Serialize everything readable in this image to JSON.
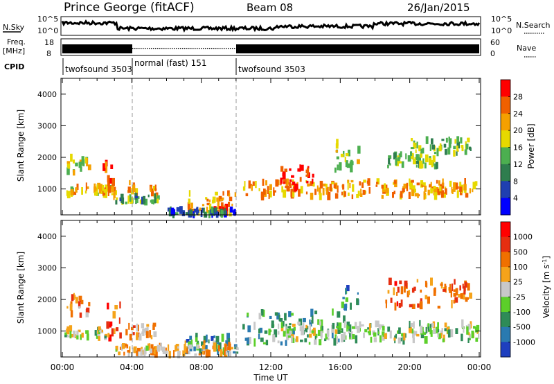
{
  "header": {
    "station": "Prince George (fitACF)",
    "beam": "Beam 08",
    "date": "26/Jan/2015"
  },
  "panels": {
    "nsky": {
      "left_label": "N.Sky",
      "left_ticks": [
        "10^5",
        "10^0"
      ],
      "right_ticks": [
        "10^5",
        "10^0"
      ],
      "right_label": "N.Search"
    },
    "freq": {
      "left_label_1": "Freq.",
      "left_label_2": "[MHz]",
      "left_ticks": [
        "18",
        "8"
      ],
      "right_ticks": [
        "60",
        "0"
      ],
      "right_label": "Nave"
    },
    "cpid": {
      "label": "CPID",
      "segments": [
        {
          "label": "twofsound 3503",
          "start_h": 0,
          "end_h": 4
        },
        {
          "label": "normal (fast) 151",
          "start_h": 4,
          "end_h": 10
        },
        {
          "label": "twofsound 3503",
          "start_h": 10,
          "end_h": 24
        }
      ]
    }
  },
  "colors": {
    "power": [
      "#0000ff",
      "#1f3fb0",
      "#2e7d4e",
      "#4caf50",
      "#e6d900",
      "#f5a000",
      "#f06000",
      "#ff0000"
    ],
    "velocity": [
      "#1e3fbf",
      "#2a7ab0",
      "#2e8b57",
      "#5ccf2a",
      "#c8c8c8",
      "#f5a31a",
      "#f07000",
      "#e62e10",
      "#ff0000"
    ],
    "accent_line": "#888888"
  },
  "chart_data": [
    {
      "type": "heatmap",
      "name": "power",
      "ylabel": "Slant Range [km]",
      "xlabel": "",
      "xlim": [
        0,
        24
      ],
      "ylim": [
        180,
        4500
      ],
      "y_ticks": [
        "4000",
        "3000",
        "2000",
        "1000"
      ],
      "colorbar": {
        "label": "Power [dB]",
        "ticks": [
          "28",
          "24",
          "20",
          "16",
          "12",
          "8",
          "4"
        ],
        "range": [
          0,
          32
        ]
      },
      "regions": [
        {
          "t0": 0.1,
          "t1": 3.2,
          "r0": 800,
          "r1": 1100,
          "level": 0.65
        },
        {
          "t0": 0.2,
          "t1": 1.5,
          "r0": 1500,
          "r1": 2100,
          "level": 0.55
        },
        {
          "t0": 2.3,
          "t1": 3.3,
          "r0": 700,
          "r1": 1900,
          "level": 0.75
        },
        {
          "t0": 3.6,
          "t1": 4.3,
          "r0": 900,
          "r1": 1200,
          "level": 0.7
        },
        {
          "t0": 4.9,
          "t1": 5.4,
          "r0": 800,
          "r1": 1050,
          "level": 0.65
        },
        {
          "t0": 7.2,
          "t1": 10.0,
          "r0": 250,
          "r1": 900,
          "level": 0.7
        },
        {
          "t0": 8.6,
          "t1": 9.4,
          "r0": 250,
          "r1": 500,
          "level": 0.95
        },
        {
          "t0": 10.4,
          "t1": 23.9,
          "r0": 750,
          "r1": 1250,
          "level": 0.7
        },
        {
          "t0": 12.5,
          "t1": 14.5,
          "r0": 950,
          "r1": 1700,
          "level": 0.92
        },
        {
          "t0": 15.5,
          "t1": 17.0,
          "r0": 1500,
          "r1": 2500,
          "level": 0.55
        },
        {
          "t0": 18.5,
          "t1": 21.5,
          "r0": 1700,
          "r1": 2100,
          "level": 0.45
        },
        {
          "t0": 20.0,
          "t1": 23.5,
          "r0": 2100,
          "r1": 2600,
          "level": 0.45
        },
        {
          "t0": 6.0,
          "t1": 10.0,
          "r0": 180,
          "r1": 350,
          "level": 0.25
        },
        {
          "t0": 3.0,
          "t1": 5.5,
          "r0": 550,
          "r1": 800,
          "level": 0.4
        }
      ]
    },
    {
      "type": "heatmap",
      "name": "velocity",
      "ylabel": "Slant Range [km]",
      "xlabel": "Time UT",
      "xlim": [
        0,
        24
      ],
      "ylim": [
        180,
        4500
      ],
      "x_ticks": [
        "00:00",
        "04:00",
        "08:00",
        "12:00",
        "16:00",
        "20:00",
        "00:00"
      ],
      "y_ticks": [
        "4000",
        "3000",
        "2000",
        "1000"
      ],
      "colorbar": {
        "label": "Velocity [m s",
        "label_sup": "-1",
        "label_close": "]",
        "ticks": [
          "1000",
          "500",
          "100",
          "25",
          "-25",
          "-100",
          "-500",
          "-1000"
        ]
      },
      "regions": [
        {
          "t0": 0.1,
          "t1": 2.5,
          "r0": 800,
          "r1": 1100,
          "level": 0.45
        },
        {
          "t0": 0.2,
          "t1": 1.5,
          "r0": 1500,
          "r1": 2100,
          "level": 0.7
        },
        {
          "t0": 2.3,
          "t1": 3.3,
          "r0": 700,
          "r1": 1900,
          "level": 0.8
        },
        {
          "t0": 3.6,
          "t1": 5.4,
          "r0": 800,
          "r1": 1200,
          "level": 0.62
        },
        {
          "t0": 7.0,
          "t1": 10.0,
          "r0": 250,
          "r1": 900,
          "level": 0.25
        },
        {
          "t0": 10.3,
          "t1": 16.5,
          "r0": 600,
          "r1": 1600,
          "level": 0.3
        },
        {
          "t0": 12.0,
          "t1": 24.0,
          "r0": 700,
          "r1": 1250,
          "level": 0.45
        },
        {
          "t0": 16.0,
          "t1": 17.0,
          "r0": 1500,
          "r1": 2400,
          "level": 0.22
        },
        {
          "t0": 18.5,
          "t1": 23.5,
          "r0": 1700,
          "r1": 2600,
          "level": 0.72
        },
        {
          "t0": 3.0,
          "t1": 10.0,
          "r0": 250,
          "r1": 600,
          "level": 0.6
        }
      ]
    }
  ]
}
